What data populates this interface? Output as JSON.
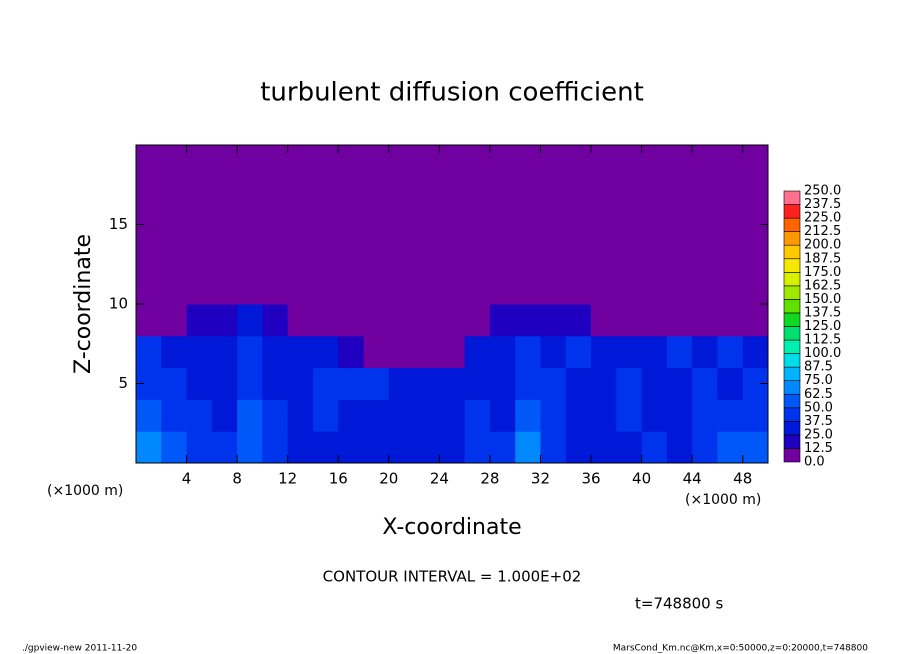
{
  "chart_data": {
    "type": "contour",
    "title": "turbulent diffusion coefficient",
    "x_label": "X-coordinate",
    "y_label": "Z-coordinate",
    "x_unit_label": "(×1000 m)",
    "y_unit_label": "(×1000 m)",
    "annotations": [
      "CONTOUR INTERVAL = 1.000E+02",
      "t=748800 s"
    ],
    "footer_left": "./gpview-new  2011-11-20",
    "footer_right": "MarsCond_Km.nc@Km,x=0:50000,z=0:20000,t=748800",
    "xlim": [
      0,
      50
    ],
    "ylim": [
      0,
      20
    ],
    "xticks": [
      4,
      8,
      12,
      16,
      20,
      24,
      28,
      32,
      36,
      40,
      44,
      48
    ],
    "yticks": [
      5,
      10,
      15
    ],
    "x": [
      1,
      3,
      5,
      7,
      9,
      11,
      13,
      15,
      17,
      19,
      21,
      23,
      25,
      27,
      29,
      31,
      33,
      35,
      37,
      39,
      41,
      43,
      45,
      47,
      49
    ],
    "z": [
      1,
      3,
      5,
      7,
      9,
      11,
      13,
      15,
      17,
      19
    ],
    "values": [
      [
        70,
        60,
        45,
        40,
        55,
        40,
        35,
        30,
        35,
        30,
        30,
        35,
        35,
        40,
        40,
        65,
        45,
        35,
        30,
        35,
        40,
        35,
        45,
        55,
        60
      ],
      [
        55,
        45,
        40,
        35,
        50,
        40,
        35,
        40,
        35,
        35,
        30,
        30,
        35,
        40,
        35,
        55,
        40,
        35,
        35,
        40,
        35,
        30,
        40,
        45,
        40
      ],
      [
        45,
        40,
        35,
        30,
        40,
        35,
        35,
        40,
        40,
        45,
        35,
        30,
        30,
        35,
        35,
        45,
        40,
        30,
        35,
        40,
        35,
        35,
        40,
        35,
        45
      ],
      [
        40,
        35,
        30,
        35,
        40,
        35,
        35,
        30,
        20,
        0,
        0,
        0,
        0,
        25,
        35,
        40,
        35,
        40,
        30,
        35,
        35,
        40,
        35,
        40,
        35
      ],
      [
        0,
        0,
        15,
        20,
        25,
        15,
        0,
        0,
        0,
        0,
        0,
        0,
        0,
        0,
        15,
        20,
        20,
        15,
        0,
        0,
        0,
        0,
        0,
        0,
        0
      ],
      [
        0,
        0,
        0,
        0,
        0,
        0,
        0,
        0,
        0,
        0,
        0,
        0,
        0,
        0,
        0,
        0,
        0,
        0,
        0,
        0,
        0,
        0,
        0,
        0,
        0
      ],
      [
        0,
        0,
        0,
        0,
        0,
        0,
        0,
        0,
        0,
        0,
        0,
        0,
        0,
        0,
        0,
        0,
        0,
        0,
        0,
        0,
        0,
        0,
        0,
        0,
        0
      ],
      [
        0,
        0,
        0,
        0,
        0,
        0,
        0,
        0,
        0,
        0,
        0,
        0,
        0,
        0,
        0,
        0,
        0,
        0,
        0,
        0,
        0,
        0,
        0,
        0,
        0
      ],
      [
        0,
        0,
        0,
        0,
        0,
        0,
        0,
        0,
        0,
        0,
        0,
        0,
        0,
        0,
        0,
        0,
        0,
        0,
        0,
        0,
        0,
        0,
        0,
        0,
        0
      ],
      [
        0,
        0,
        0,
        0,
        0,
        0,
        0,
        0,
        0,
        0,
        0,
        0,
        0,
        0,
        0,
        0,
        0,
        0,
        0,
        0,
        0,
        0,
        0,
        0,
        0
      ]
    ],
    "colorbar": {
      "levels": [
        {
          "value": 0,
          "label": "0.0"
        },
        {
          "value": 12.5,
          "label": "12.5"
        },
        {
          "value": 25,
          "label": "25.0"
        },
        {
          "value": 37.5,
          "label": "37.5"
        },
        {
          "value": 50,
          "label": "50.0"
        },
        {
          "value": 62.5,
          "label": "62.5"
        },
        {
          "value": 75,
          "label": "75.0"
        },
        {
          "value": 87.5,
          "label": "87.5"
        },
        {
          "value": 100,
          "label": "100.0"
        },
        {
          "value": 112.5,
          "label": "112.5"
        },
        {
          "value": 125,
          "label": "125.0"
        },
        {
          "value": 137.5,
          "label": "137.5"
        },
        {
          "value": 150,
          "label": "150.0"
        },
        {
          "value": 162.5,
          "label": "162.5"
        },
        {
          "value": 175,
          "label": "175.0"
        },
        {
          "value": 187.5,
          "label": "187.5"
        },
        {
          "value": 200,
          "label": "200.0"
        },
        {
          "value": 212.5,
          "label": "212.5"
        },
        {
          "value": 225,
          "label": "225.0"
        },
        {
          "value": 237.5,
          "label": "237.5"
        },
        {
          "value": 250,
          "label": "250.0"
        }
      ],
      "colors": [
        "#7000a0",
        "#2000c0",
        "#0018d8",
        "#0034ec",
        "#0058f8",
        "#0088ff",
        "#00b4ff",
        "#00dce8",
        "#00f0b0",
        "#00e070",
        "#10d820",
        "#60e000",
        "#a0e800",
        "#d8f000",
        "#f4e800",
        "#ffc800",
        "#ff9800",
        "#ff6400",
        "#ff2020",
        "#ff7090"
      ]
    }
  }
}
